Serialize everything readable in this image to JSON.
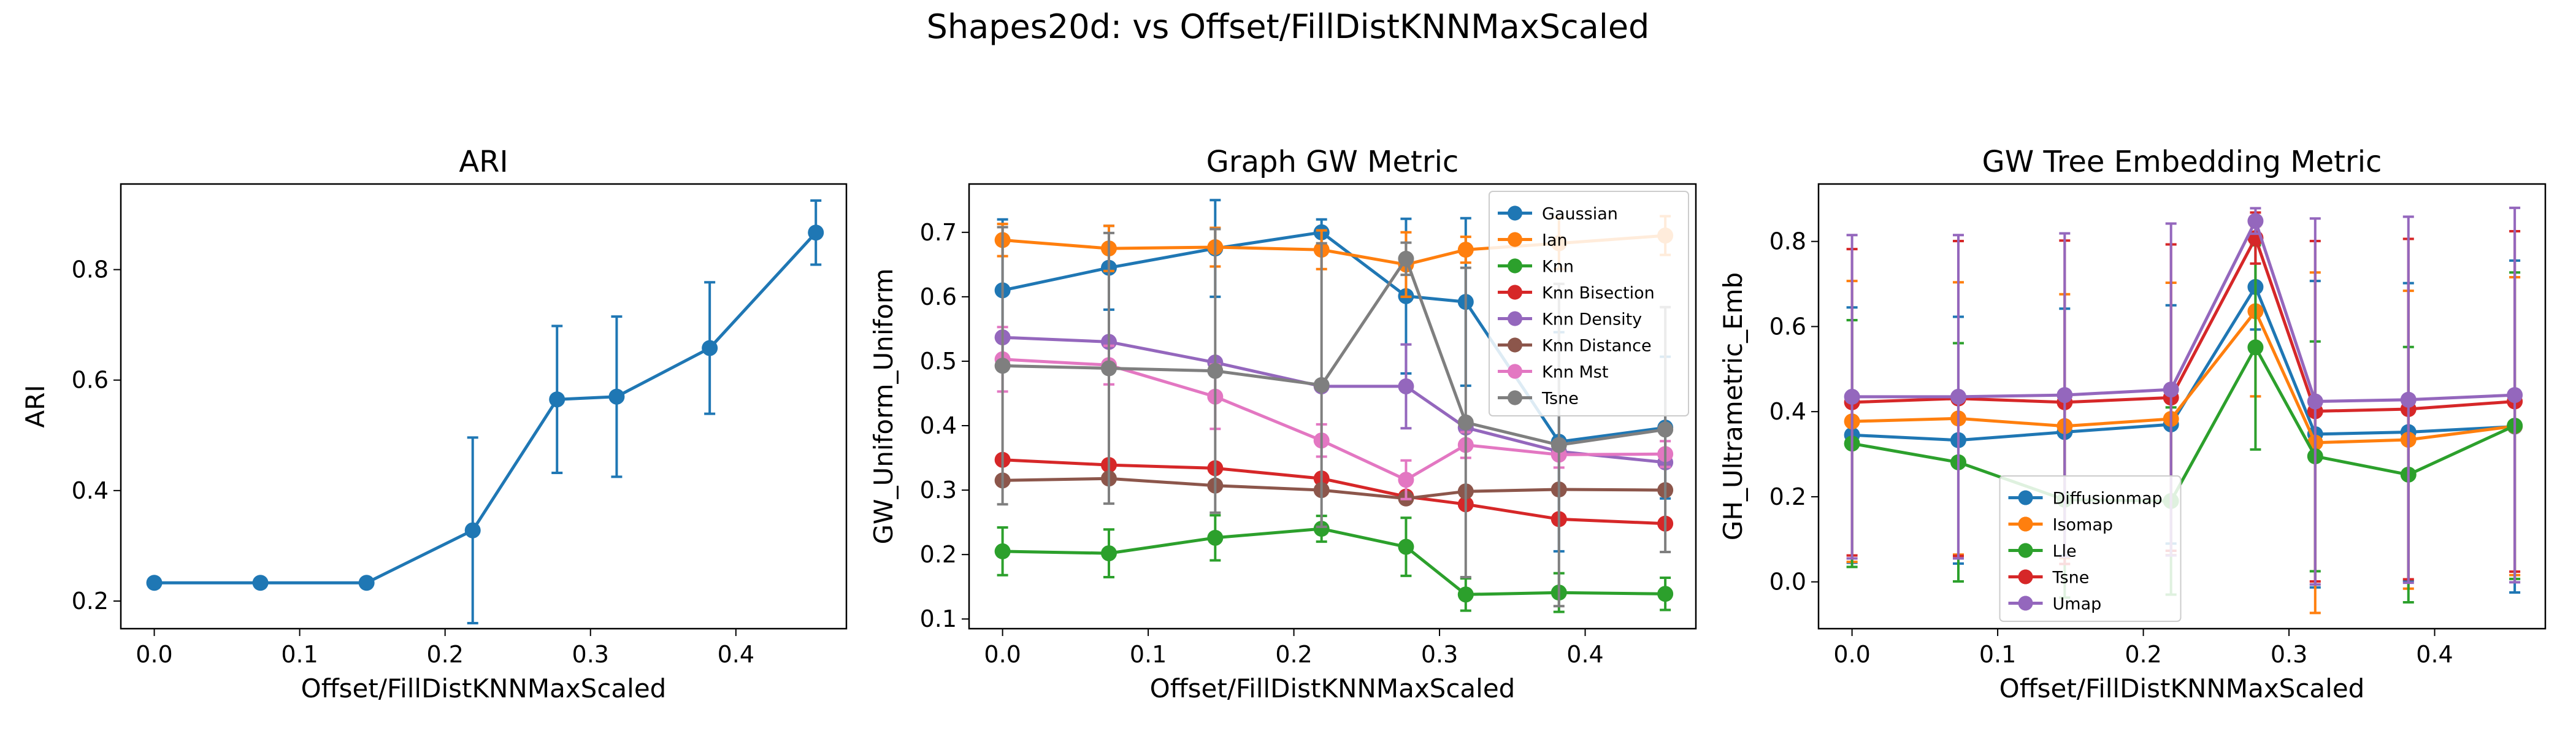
{
  "figure": {
    "suptitle": "Shapes20d: vs Offset/FillDistKNNMaxScaled"
  },
  "chart_data": [
    {
      "type": "line",
      "title": "ARI",
      "xlabel": "Offset/FillDistKNNMaxScaled",
      "ylabel": "ARI",
      "xlim": [
        -0.023,
        0.476
      ],
      "ylim": [
        0.15,
        0.955
      ],
      "xticks": [
        0.0,
        0.1,
        0.2,
        0.3,
        0.4
      ],
      "yticks": [
        0.2,
        0.4,
        0.6,
        0.8
      ],
      "tick_format": "1",
      "x": [
        0.0,
        0.073,
        0.146,
        0.219,
        0.277,
        0.318,
        0.382,
        0.455
      ],
      "legend": null,
      "series": [
        {
          "color": "#1f77b4",
          "values": [
            0.233,
            0.233,
            0.233,
            0.328,
            0.565,
            0.57,
            0.658,
            0.867
          ],
          "err": [
            0.0,
            0.0,
            0.0,
            0.168,
            0.133,
            0.145,
            0.119,
            0.058
          ]
        }
      ]
    },
    {
      "type": "line",
      "title": "Graph GW Metric",
      "xlabel": "Offset/FillDistKNNMaxScaled",
      "ylabel": "GW_Uniform_Uniform",
      "xlim": [
        -0.023,
        0.476
      ],
      "ylim": [
        0.085,
        0.775
      ],
      "xticks": [
        0.0,
        0.1,
        0.2,
        0.3,
        0.4
      ],
      "yticks": [
        0.1,
        0.2,
        0.3,
        0.4,
        0.5,
        0.6,
        0.7
      ],
      "tick_format": "1",
      "x": [
        0.0,
        0.073,
        0.146,
        0.219,
        0.277,
        0.318,
        0.382,
        0.455
      ],
      "legend": "top-right",
      "series": [
        {
          "name": "Gaussian",
          "color": "#1f77b4",
          "values": [
            0.61,
            0.645,
            0.675,
            0.7,
            0.601,
            0.592,
            0.375,
            0.397
          ],
          "err": [
            0.11,
            0.065,
            0.075,
            0.02,
            0.12,
            0.13,
            0.17,
            0.11
          ]
        },
        {
          "name": "Ian",
          "color": "#ff7f0e",
          "values": [
            0.688,
            0.675,
            0.677,
            0.673,
            0.65,
            0.673,
            0.683,
            0.695
          ],
          "err": [
            0.025,
            0.035,
            0.03,
            0.03,
            0.05,
            0.02,
            0.04,
            0.03
          ]
        },
        {
          "name": "Knn",
          "color": "#2ca02c",
          "values": [
            0.205,
            0.202,
            0.226,
            0.24,
            0.212,
            0.138,
            0.141,
            0.139
          ],
          "err": [
            0.037,
            0.037,
            0.035,
            0.02,
            0.045,
            0.025,
            0.03,
            0.025
          ]
        },
        {
          "name": "Knn Bisection",
          "color": "#d62728",
          "values": [
            0.347,
            0.339,
            0.334,
            0.318,
            0.29,
            0.278,
            0.255,
            0.248
          ],
          "err": [
            0.0,
            0.0,
            0.0,
            0.0,
            0.0,
            0.0,
            0.0,
            0.0
          ]
        },
        {
          "name": "Knn Density",
          "color": "#9467bd",
          "values": [
            0.537,
            0.53,
            0.498,
            0.461,
            0.461,
            0.397,
            0.36,
            0.343
          ],
          "err": [
            0.0,
            0.0,
            0.0,
            0.0,
            0.065,
            0.0,
            0.0,
            0.0
          ]
        },
        {
          "name": "Knn Distance",
          "color": "#8c564b",
          "values": [
            0.315,
            0.318,
            0.307,
            0.3,
            0.287,
            0.298,
            0.301,
            0.3
          ],
          "err": [
            0.0,
            0.0,
            0.0,
            0.0,
            0.0,
            0.0,
            0.0,
            0.0
          ]
        },
        {
          "name": "Knn Mst",
          "color": "#e377c2",
          "values": [
            0.503,
            0.494,
            0.445,
            0.377,
            0.316,
            0.37,
            0.355,
            0.356
          ],
          "err": [
            0.05,
            0.03,
            0.05,
            0.025,
            0.03,
            0.02,
            0.02,
            0.02
          ]
        },
        {
          "name": "Tsne",
          "color": "#7f7f7f",
          "values": [
            0.493,
            0.489,
            0.485,
            0.463,
            0.659,
            0.405,
            0.37,
            0.394
          ],
          "err": [
            0.215,
            0.21,
            0.22,
            0.22,
            0.025,
            0.24,
            0.25,
            0.19
          ]
        }
      ]
    },
    {
      "type": "line",
      "title": "GW Tree Embedding Metric",
      "xlabel": "Offset/FillDistKNNMaxScaled",
      "ylabel": "GH_Ultrametric_Emb",
      "xlim": [
        -0.023,
        0.476
      ],
      "ylim": [
        -0.11,
        0.935
      ],
      "xticks": [
        0.0,
        0.1,
        0.2,
        0.3,
        0.4
      ],
      "yticks": [
        0.0,
        0.2,
        0.4,
        0.6,
        0.8
      ],
      "tick_format": "1",
      "x": [
        0.0,
        0.073,
        0.146,
        0.219,
        0.277,
        0.318,
        0.382,
        0.455
      ],
      "legend": "bottom-center",
      "series": [
        {
          "name": "Diffusionmap",
          "color": "#1f77b4",
          "values": [
            0.345,
            0.333,
            0.352,
            0.37,
            0.693,
            0.347,
            0.352,
            0.365
          ],
          "err": [
            0.3,
            0.29,
            0.29,
            0.28,
            0.1,
            0.36,
            0.35,
            0.39
          ]
        },
        {
          "name": "Isomap",
          "color": "#ff7f0e",
          "values": [
            0.377,
            0.384,
            0.366,
            0.383,
            0.636,
            0.327,
            0.334,
            0.366
          ],
          "err": [
            0.33,
            0.32,
            0.31,
            0.32,
            0.2,
            0.4,
            0.35,
            0.35
          ]
        },
        {
          "name": "Lle",
          "color": "#2ca02c",
          "values": [
            0.325,
            0.281,
            0.193,
            0.19,
            0.551,
            0.295,
            0.252,
            0.367
          ],
          "err": [
            0.29,
            0.28,
            0.23,
            0.22,
            0.24,
            0.27,
            0.3,
            0.36
          ]
        },
        {
          "name": "Tsne",
          "color": "#d62728",
          "values": [
            0.422,
            0.431,
            0.422,
            0.433,
            0.808,
            0.401,
            0.406,
            0.424
          ],
          "err": [
            0.36,
            0.37,
            0.38,
            0.36,
            0.06,
            0.4,
            0.4,
            0.4
          ]
        },
        {
          "name": "Umap",
          "color": "#9467bd",
          "values": [
            0.435,
            0.435,
            0.439,
            0.452,
            0.848,
            0.424,
            0.428,
            0.439
          ],
          "err": [
            0.38,
            0.38,
            0.38,
            0.39,
            0.03,
            0.43,
            0.43,
            0.44
          ]
        }
      ]
    }
  ]
}
